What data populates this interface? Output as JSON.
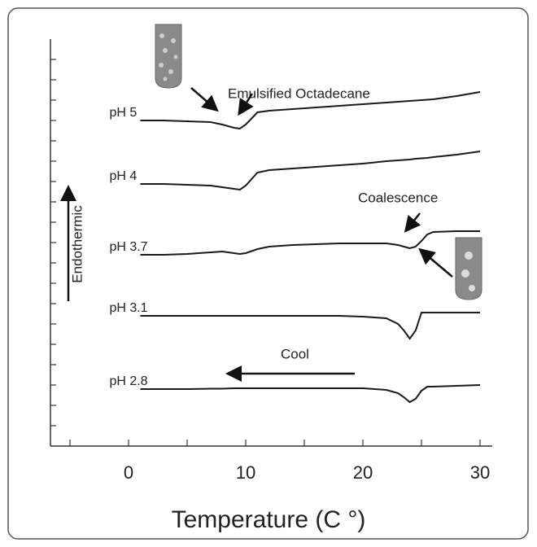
{
  "chart_data": {
    "type": "line",
    "x_label": "Temperature (C °)",
    "y_label": "Endothermic",
    "annotations": [
      "Emulsified Octadecane",
      "Coalescence",
      "Cool"
    ],
    "x": [
      1,
      3,
      5,
      7,
      8,
      9,
      9.5,
      10,
      11,
      12,
      14,
      16,
      18,
      20,
      22,
      23,
      23.5,
      24,
      24.5,
      25,
      25.5,
      26,
      28,
      30
    ],
    "series": [
      {
        "name": "pH 5",
        "color": "#1a1a1a",
        "values": [
          40.0,
          40.0,
          39.9,
          39.8,
          39.5,
          39.1,
          39.0,
          39.5,
          41.0,
          41.2,
          41.4,
          41.6,
          41.8,
          42.0,
          42.2,
          42.3,
          42.35,
          42.4,
          42.45,
          42.5,
          42.55,
          42.6,
          43.0,
          43.5
        ]
      },
      {
        "name": "pH 4",
        "color": "#1a1a1a",
        "values": [
          32.2,
          32.2,
          32.1,
          32.0,
          31.8,
          31.6,
          31.5,
          32.0,
          33.6,
          33.9,
          34.1,
          34.3,
          34.5,
          34.7,
          35.0,
          35.1,
          35.15,
          35.2,
          35.3,
          35.35,
          35.4,
          35.5,
          35.8,
          36.2
        ]
      },
      {
        "name": "pH 3.7",
        "color": "#1a1a1a",
        "values": [
          23.5,
          23.5,
          23.6,
          23.8,
          23.9,
          23.7,
          23.6,
          23.7,
          24.2,
          24.5,
          24.7,
          24.8,
          24.9,
          24.9,
          24.9,
          24.7,
          24.5,
          24.3,
          24.5,
          25.2,
          26.0,
          26.3,
          26.4,
          26.4
        ]
      },
      {
        "name": "pH 3.1",
        "color": "#1a1a1a",
        "values": [
          16.0,
          16.0,
          16.0,
          16.0,
          16.0,
          16.0,
          16.0,
          16.0,
          16.0,
          16.0,
          16.0,
          16.0,
          16.0,
          15.9,
          15.7,
          15.0,
          14.2,
          13.2,
          14.2,
          16.4,
          16.4,
          16.4,
          16.4,
          16.4
        ]
      },
      {
        "name": "pH 2.8",
        "color": "#1a1a1a",
        "values": [
          7.0,
          7.0,
          7.0,
          7.05,
          7.05,
          7.1,
          7.1,
          7.1,
          7.1,
          7.1,
          7.1,
          7.1,
          7.1,
          7.1,
          6.9,
          6.5,
          6.0,
          5.4,
          5.8,
          6.8,
          7.3,
          7.3,
          7.4,
          7.5
        ]
      }
    ],
    "xlim": [
      -6.67,
      31.04
    ],
    "xticks": [
      0,
      10,
      20,
      30
    ],
    "xminorticks": [
      -5,
      5,
      15,
      25
    ],
    "ylim": [
      0,
      50
    ],
    "yticks": [
      2.5,
      5,
      7.5,
      10,
      12.5,
      15,
      17.5,
      20,
      22.5,
      25,
      27.5,
      30,
      32.5,
      35,
      37.5,
      40,
      42.5,
      45,
      47.5
    ]
  }
}
